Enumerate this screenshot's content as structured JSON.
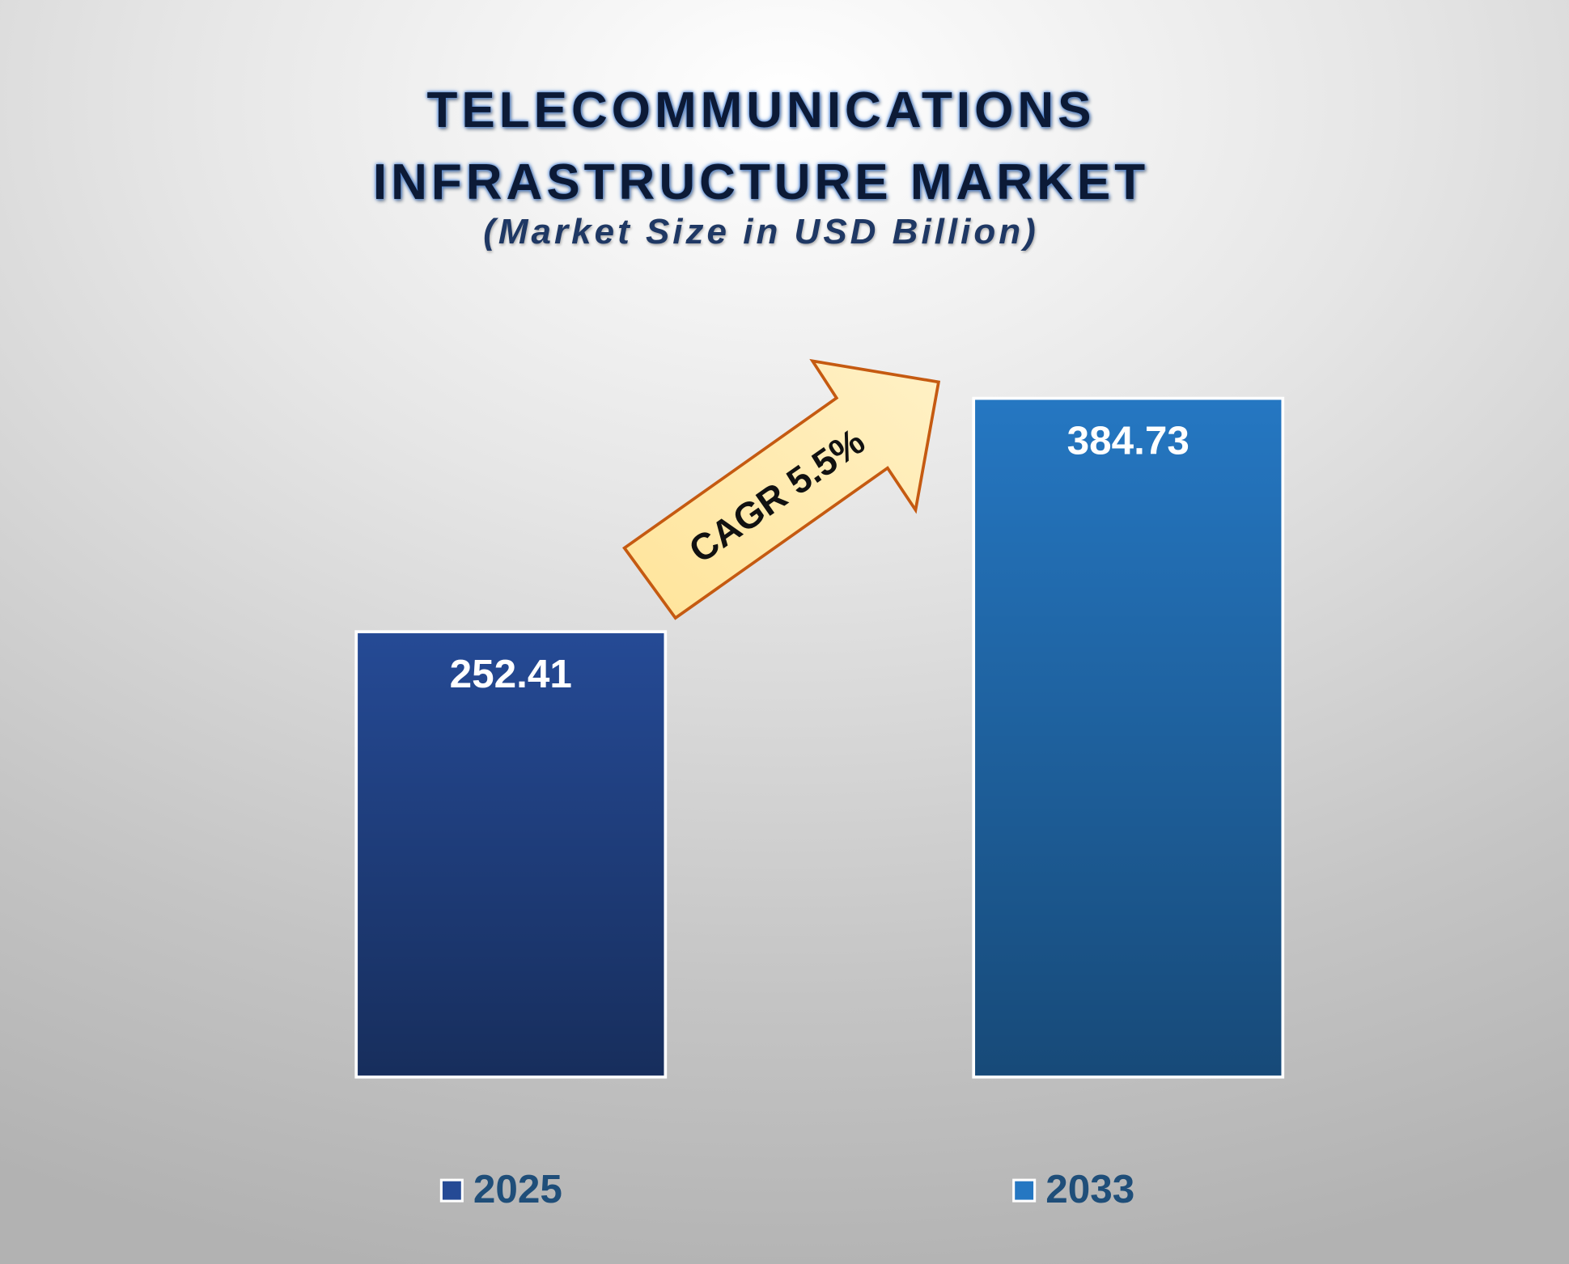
{
  "chart_data": {
    "type": "bar",
    "title": "TELECOMMUNICATIONS INFRASTRUCTURE MARKET",
    "subtitle": "(Market Size in USD Billion)",
    "categories": [
      "2025",
      "2033"
    ],
    "values": [
      252.41,
      384.73
    ],
    "colors": [
      "#254a95",
      "#2577c2"
    ],
    "annotation": "CAGR 5.5%"
  }
}
